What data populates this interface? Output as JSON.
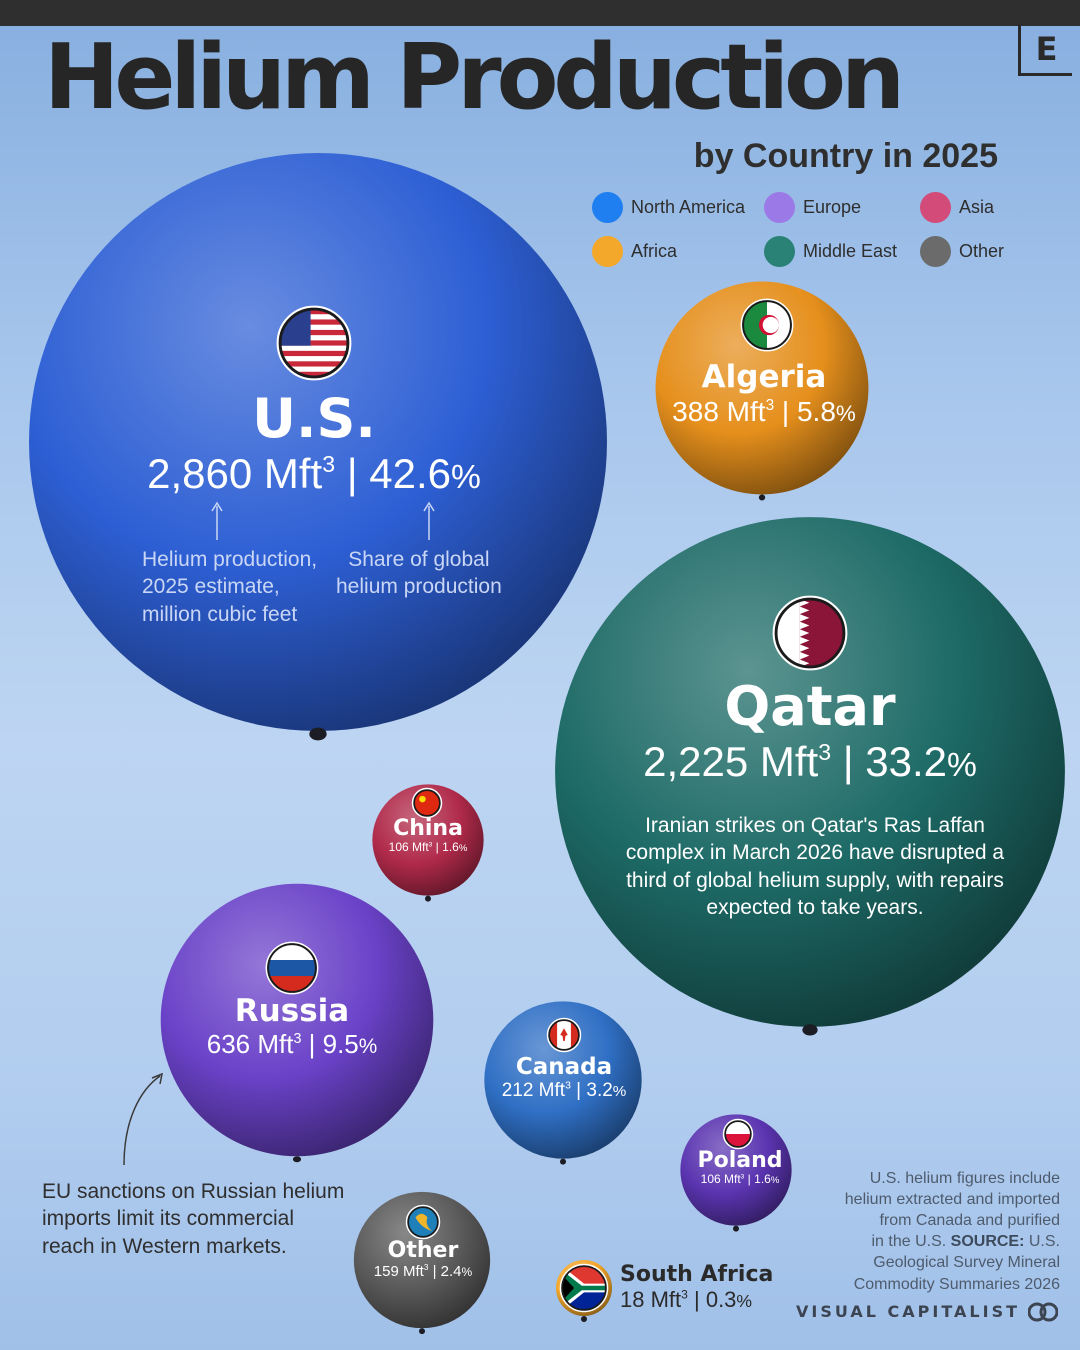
{
  "header": {
    "title": "Helium Production",
    "subtitle": "by Country in 2025",
    "logo_letter": "E"
  },
  "legend": [
    {
      "label": "North America",
      "color": "#1f7ff0"
    },
    {
      "label": "Europe",
      "color": "#9b7ae8"
    },
    {
      "label": "Asia",
      "color": "#d24b79"
    },
    {
      "label": "Africa",
      "color": "#f3a82c"
    },
    {
      "label": "Middle East",
      "color": "#2a8276"
    },
    {
      "label": "Other",
      "color": "#6b6b6b"
    }
  ],
  "chart_data": {
    "type": "bubble",
    "title": "Helium Production",
    "subtitle": "by Country in 2025",
    "unit": "Mft³",
    "points": [
      {
        "name": "U.S.",
        "value": 2860,
        "value_label": "2,860 Mft",
        "share": 42.6,
        "share_label": "42.6",
        "region": "North America",
        "flag": "us-flag-icon",
        "color": "#2d5fd4"
      },
      {
        "name": "Qatar",
        "value": 2225,
        "value_label": "2,225 Mft",
        "share": 33.2,
        "share_label": "33.2",
        "region": "Middle East",
        "flag": "qatar-flag-icon",
        "color": "#1d6a66"
      },
      {
        "name": "Russia",
        "value": 636,
        "value_label": "636 Mft",
        "share": 9.5,
        "share_label": "9.5",
        "region": "Europe",
        "flag": "russia-flag-icon",
        "color": "#6a42c8"
      },
      {
        "name": "Algeria",
        "value": 388,
        "value_label": "388 Mft",
        "share": 5.8,
        "share_label": "5.8",
        "region": "Africa",
        "flag": "algeria-flag-icon",
        "color": "#e58f1c"
      },
      {
        "name": "Canada",
        "value": 212,
        "value_label": "212 Mft",
        "share": 3.2,
        "share_label": "3.2",
        "region": "North America",
        "flag": "canada-flag-icon",
        "color": "#2f6fc4"
      },
      {
        "name": "Other",
        "value": 159,
        "value_label": "159 Mft",
        "share": 2.4,
        "share_label": "2.4",
        "region": "Other",
        "flag": "globe-icon",
        "color": "#5a5a5a"
      },
      {
        "name": "China",
        "value": 106,
        "value_label": "106 Mft",
        "share": 1.6,
        "share_label": "1.6",
        "region": "Asia",
        "flag": "china-flag-icon",
        "color": "#b02a4a"
      },
      {
        "name": "Poland",
        "value": 106,
        "value_label": "106 Mft",
        "share": 1.6,
        "share_label": "1.6",
        "region": "Europe",
        "flag": "poland-flag-icon",
        "color": "#5a34b0"
      },
      {
        "name": "South Africa",
        "value": 18,
        "value_label": "18 Mft",
        "share": 0.3,
        "share_label": "0.3",
        "region": "Africa",
        "flag": "south-africa-flag-icon",
        "color": "#f3a82c"
      }
    ]
  },
  "annotations": {
    "us_value_explainer": "Helium production,\n2025 estimate,\nmillion cubic feet",
    "us_share_explainer": "Share of global\nhelium production",
    "qatar_note": "Iranian strikes on Qatar's Ras Laffan\ncomplex in March 2026 have disrupted a\nthird of global helium supply, with repairs\nexpected to take years.",
    "russia_note": "EU sanctions on Russian helium\nimports limit its commercial\nreach in Western markets."
  },
  "footer": {
    "source_text": "U.S. helium figures include\nhelium extracted and imported\nfrom Canada and purified\nin the U.S.",
    "source_label": "SOURCE:",
    "source_name": "U.S.\nGeological Survey Mineral\nCommodity Summaries 2026",
    "brand": "VISUAL CAPITALIST"
  },
  "text": {
    "cube": "3",
    "divider": "|",
    "percent": "%"
  }
}
